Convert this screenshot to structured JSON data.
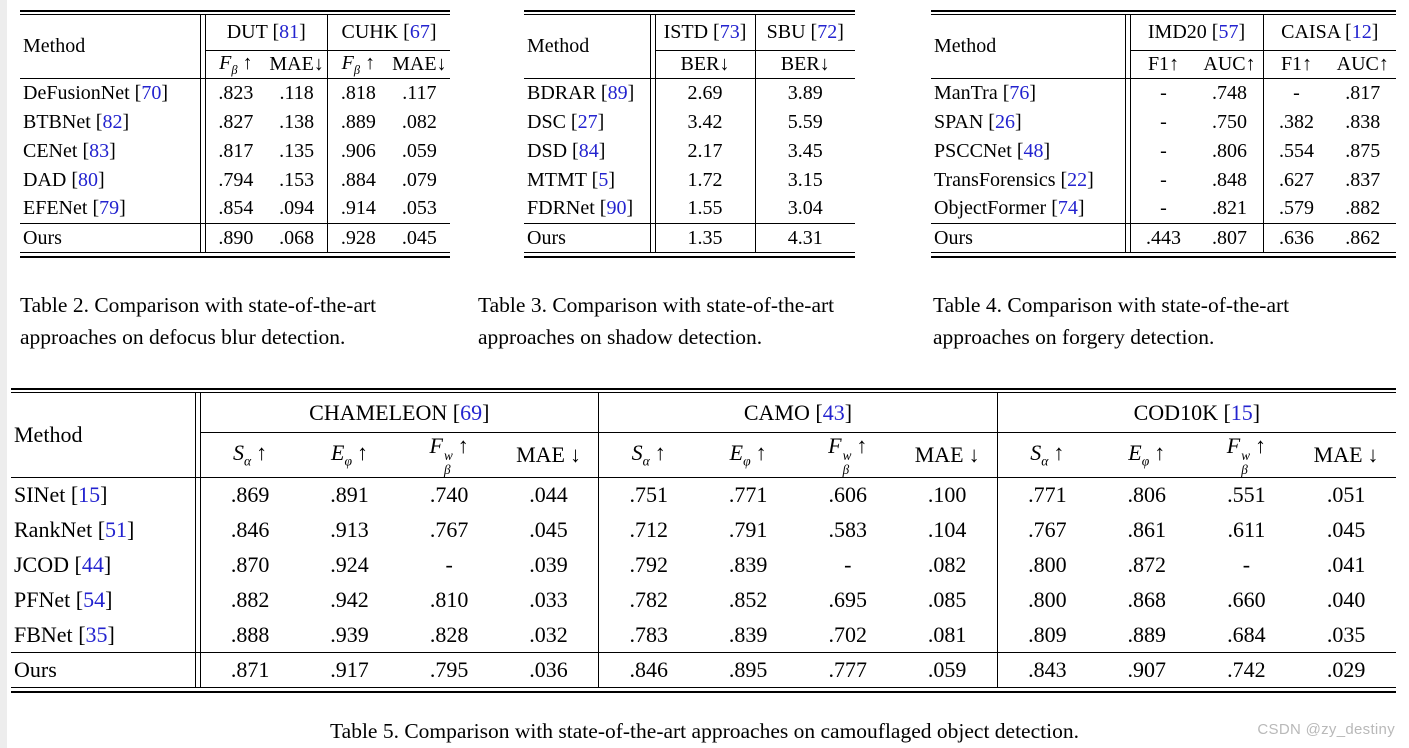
{
  "page": {
    "watermark": "CSDN @zy_destiny"
  },
  "colors": {
    "citation_blue": "#2323cf",
    "watermark_gray": "#b9b9b9",
    "rule_black": "#000000"
  },
  "tables": {
    "t2": {
      "method_label": "Method",
      "caption_line1": "Table 2. Comparison with state-of-the-art",
      "caption_line2": "approaches on defocus blur detection.",
      "groups": [
        {
          "name": "DUT",
          "ref": "81",
          "cols": [
            {
              "base": "F",
              "sub": "β",
              "arrow": "↑",
              "italic": true,
              "gap": true
            },
            {
              "base": "MAE",
              "arrow": "↓",
              "italic": false,
              "gap": false
            }
          ]
        },
        {
          "name": "CUHK",
          "ref": "67",
          "cols": [
            {
              "base": "F",
              "sub": "β",
              "arrow": "↑",
              "italic": true,
              "gap": true
            },
            {
              "base": "MAE",
              "arrow": "↓",
              "italic": false,
              "gap": false
            }
          ]
        }
      ],
      "rows": [
        {
          "method": "DeFusionNet",
          "ref": "70",
          "values": [
            ".823",
            ".118",
            ".818",
            ".117"
          ],
          "bold": []
        },
        {
          "method": "BTBNet",
          "ref": "82",
          "values": [
            ".827",
            ".138",
            ".889",
            ".082"
          ],
          "bold": []
        },
        {
          "method": "CENet",
          "ref": "83",
          "values": [
            ".817",
            ".135",
            ".906",
            ".059"
          ],
          "bold": []
        },
        {
          "method": "DAD",
          "ref": "80",
          "values": [
            ".794",
            ".153",
            ".884",
            ".079"
          ],
          "bold": []
        },
        {
          "method": "EFENet",
          "ref": "79",
          "values": [
            ".854",
            ".094",
            ".914",
            ".053"
          ],
          "bold": []
        },
        {
          "method": "Ours",
          "ours": true,
          "values": [
            ".890",
            ".068",
            ".928",
            ".045"
          ],
          "bold": [
            0,
            1,
            2,
            3
          ]
        }
      ]
    },
    "t3": {
      "method_label": "Method",
      "caption_line1": "Table 3. Comparison with state-of-the-art",
      "caption_line2": "approaches on shadow detection.",
      "groups": [
        {
          "name": "ISTD",
          "ref": "73",
          "cols": [
            {
              "base": "BER",
              "arrow": "↓",
              "italic": false,
              "gap": false
            }
          ]
        },
        {
          "name": "SBU",
          "ref": "72",
          "cols": [
            {
              "base": "BER",
              "arrow": "↓",
              "italic": false,
              "gap": false
            }
          ]
        }
      ],
      "rows": [
        {
          "method": "BDRAR",
          "ref": "89",
          "values": [
            "2.69",
            "3.89"
          ],
          "bold": []
        },
        {
          "method": "DSC",
          "ref": "27",
          "values": [
            "3.42",
            "5.59"
          ],
          "bold": []
        },
        {
          "method": "DSD",
          "ref": "84",
          "values": [
            "2.17",
            "3.45"
          ],
          "bold": []
        },
        {
          "method": "MTMT",
          "ref": "5",
          "values": [
            "1.72",
            "3.15"
          ],
          "bold": []
        },
        {
          "method": "FDRNet",
          "ref": "90",
          "values": [
            "1.55",
            "3.04"
          ],
          "bold": [
            1
          ]
        },
        {
          "method": "Ours",
          "ours": true,
          "values": [
            "1.35",
            "4.31"
          ],
          "bold": [
            0
          ]
        }
      ]
    },
    "t4": {
      "method_label": "Method",
      "caption_line1": "Table 4. Comparison with state-of-the-art",
      "caption_line2": "approaches on forgery detection.",
      "groups": [
        {
          "name": "IMD20",
          "ref": "57",
          "cols": [
            {
              "base": "F1",
              "arrow": "↑",
              "italic": false,
              "gap": false
            },
            {
              "base": "AUC",
              "arrow": "↑",
              "italic": false,
              "gap": false
            }
          ]
        },
        {
          "name": "CAISA",
          "ref": "12",
          "cols": [
            {
              "base": "F1",
              "arrow": "↑",
              "italic": false,
              "gap": false
            },
            {
              "base": "AUC",
              "arrow": "↑",
              "italic": false,
              "gap": false
            }
          ]
        }
      ],
      "rows": [
        {
          "method": "ManTra",
          "ref": "76",
          "values": [
            "-",
            ".748",
            "-",
            ".817"
          ],
          "bold": []
        },
        {
          "method": "SPAN",
          "ref": "26",
          "values": [
            "-",
            ".750",
            ".382",
            ".838"
          ],
          "bold": []
        },
        {
          "method": "PSCCNet",
          "ref": "48",
          "values": [
            "-",
            ".806",
            ".554",
            ".875"
          ],
          "bold": []
        },
        {
          "method": "TransForensics",
          "ref": "22",
          "values": [
            "-",
            ".848",
            ".627",
            ".837"
          ],
          "bold": [
            1
          ]
        },
        {
          "method": "ObjectFormer",
          "ref": "74",
          "values": [
            "-",
            ".821",
            ".579",
            ".882"
          ],
          "bold": [
            3
          ]
        },
        {
          "method": "Ours",
          "ours": true,
          "values": [
            ".443",
            ".807",
            ".636",
            ".862"
          ],
          "bold": [
            0,
            2
          ]
        }
      ]
    },
    "t5": {
      "method_label": "Method",
      "caption": "Table 5. Comparison with state-of-the-art approaches on camouflaged object detection.",
      "groups": [
        {
          "name": "CHAMELEON",
          "ref": "69",
          "cols": [
            {
              "base": "S",
              "sub": "α",
              "arrow": "↑",
              "italic": true,
              "gap": true
            },
            {
              "base": "E",
              "sub": "φ",
              "arrow": "↑",
              "italic": true,
              "gap": true
            },
            {
              "base": "F",
              "sub": "β",
              "sup": "w",
              "arrow": "↑",
              "italic": true,
              "gap": true
            },
            {
              "base": "MAE",
              "arrow": "↓",
              "italic": false,
              "gap": true
            }
          ]
        },
        {
          "name": "CAMO",
          "ref": "43",
          "cols": [
            {
              "base": "S",
              "sub": "α",
              "arrow": "↑",
              "italic": true,
              "gap": true
            },
            {
              "base": "E",
              "sub": "φ",
              "arrow": "↑",
              "italic": true,
              "gap": true
            },
            {
              "base": "F",
              "sub": "β",
              "sup": "w",
              "arrow": "↑",
              "italic": true,
              "gap": true
            },
            {
              "base": "MAE",
              "arrow": "↓",
              "italic": false,
              "gap": true
            }
          ]
        },
        {
          "name": "COD10K",
          "ref": "15",
          "cols": [
            {
              "base": "S",
              "sub": "α",
              "arrow": "↑",
              "italic": true,
              "gap": true
            },
            {
              "base": "E",
              "sub": "φ",
              "arrow": "↑",
              "italic": true,
              "gap": true
            },
            {
              "base": "F",
              "sub": "β",
              "sup": "w",
              "arrow": "↑",
              "italic": true,
              "gap": true
            },
            {
              "base": "MAE",
              "arrow": "↓",
              "italic": false,
              "gap": true
            }
          ]
        }
      ],
      "rows": [
        {
          "method": "SINet",
          "ref": "15",
          "values": [
            ".869",
            ".891",
            ".740",
            ".044",
            ".751",
            ".771",
            ".606",
            ".100",
            ".771",
            ".806",
            ".551",
            ".051"
          ],
          "bold": []
        },
        {
          "method": "RankNet",
          "ref": "51",
          "values": [
            ".846",
            ".913",
            ".767",
            ".045",
            ".712",
            ".791",
            ".583",
            ".104",
            ".767",
            ".861",
            ".611",
            ".045"
          ],
          "bold": []
        },
        {
          "method": "JCOD",
          "ref": "44",
          "values": [
            ".870",
            ".924",
            "-",
            ".039",
            ".792",
            ".839",
            "-",
            ".082",
            ".800",
            ".872",
            "-",
            ".041"
          ],
          "bold": []
        },
        {
          "method": "PFNet",
          "ref": "54",
          "values": [
            ".882",
            ".942",
            ".810",
            ".033",
            ".782",
            ".852",
            ".695",
            ".085",
            ".800",
            ".868",
            ".660",
            ".040"
          ],
          "bold": [
            1
          ]
        },
        {
          "method": "FBNet",
          "ref": "35",
          "values": [
            ".888",
            ".939",
            ".828",
            ".032",
            ".783",
            ".839",
            ".702",
            ".081",
            ".809",
            ".889",
            ".684",
            ".035"
          ],
          "bold": [
            0,
            2,
            3
          ]
        },
        {
          "method": "Ours",
          "ours": true,
          "values": [
            ".871",
            ".917",
            ".795",
            ".036",
            ".846",
            ".895",
            ".777",
            ".059",
            ".843",
            ".907",
            ".742",
            ".029"
          ],
          "bold": [
            4,
            5,
            6,
            7,
            8,
            9,
            10,
            11
          ]
        }
      ]
    }
  }
}
